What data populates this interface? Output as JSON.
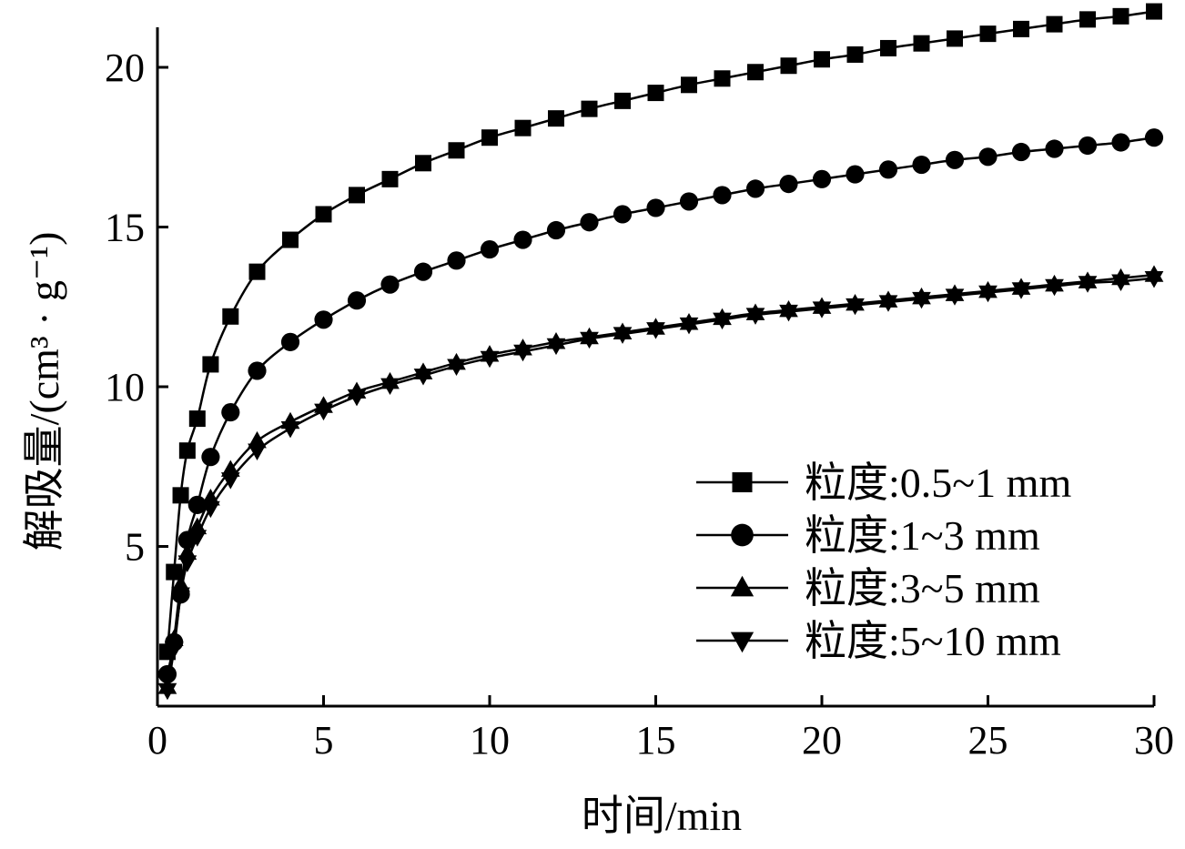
{
  "chart_data": {
    "type": "line",
    "title": "",
    "xlabel": "时间/min",
    "ylabel": "解吸量/(cm³ · g⁻¹)",
    "xlim": [
      0,
      30
    ],
    "ylim": [
      0,
      20
    ],
    "x_ticks": [
      0,
      5,
      10,
      15,
      20,
      25,
      30
    ],
    "y_ticks": [
      5,
      10,
      15,
      20
    ],
    "grid": false,
    "legend_position": "bottom-right",
    "series": [
      {
        "name": "粒度:0.5~1 mm",
        "marker": "square",
        "x": [
          0.3,
          0.5,
          0.7,
          0.9,
          1.2,
          1.6,
          2.2,
          3,
          4,
          5,
          6,
          7,
          8,
          9,
          10,
          11,
          12,
          13,
          14,
          15,
          16,
          17,
          18,
          19,
          20,
          21,
          22,
          23,
          24,
          25,
          26,
          27,
          28,
          29,
          30
        ],
        "y": [
          1.7,
          4.2,
          6.6,
          8.0,
          9.0,
          10.7,
          12.2,
          13.6,
          14.6,
          15.4,
          16.0,
          16.5,
          17.0,
          17.4,
          17.8,
          18.1,
          18.4,
          18.7,
          18.95,
          19.2,
          19.45,
          19.65,
          19.85,
          20.05,
          20.25,
          20.4,
          20.6,
          20.75,
          20.9,
          21.05,
          21.2,
          21.35,
          21.5,
          21.6,
          21.75
        ]
      },
      {
        "name": "粒度:1~3 mm",
        "marker": "circle",
        "x": [
          0.3,
          0.5,
          0.7,
          0.9,
          1.2,
          1.6,
          2.2,
          3,
          4,
          5,
          6,
          7,
          8,
          9,
          10,
          11,
          12,
          13,
          14,
          15,
          16,
          17,
          18,
          19,
          20,
          21,
          22,
          23,
          24,
          25,
          26,
          27,
          28,
          29,
          30
        ],
        "y": [
          1.0,
          2.0,
          3.5,
          5.2,
          6.3,
          7.8,
          9.2,
          10.5,
          11.4,
          12.1,
          12.7,
          13.2,
          13.6,
          13.95,
          14.3,
          14.6,
          14.9,
          15.15,
          15.4,
          15.6,
          15.8,
          16.0,
          16.2,
          16.35,
          16.5,
          16.65,
          16.8,
          16.95,
          17.1,
          17.2,
          17.35,
          17.45,
          17.55,
          17.65,
          17.8
        ]
      },
      {
        "name": "粒度:3~5 mm",
        "marker": "triangle-up",
        "x": [
          0.3,
          0.5,
          0.7,
          0.9,
          1.2,
          1.6,
          2.2,
          3,
          4,
          5,
          6,
          7,
          8,
          9,
          10,
          11,
          12,
          13,
          14,
          15,
          16,
          17,
          18,
          19,
          20,
          21,
          22,
          23,
          24,
          25,
          26,
          27,
          28,
          29,
          30
        ],
        "y": [
          0.6,
          2.1,
          3.8,
          4.8,
          5.6,
          6.5,
          7.4,
          8.3,
          8.9,
          9.4,
          9.85,
          10.15,
          10.45,
          10.75,
          11.0,
          11.2,
          11.4,
          11.55,
          11.7,
          11.85,
          12.0,
          12.15,
          12.3,
          12.4,
          12.5,
          12.6,
          12.7,
          12.8,
          12.9,
          13.0,
          13.1,
          13.2,
          13.3,
          13.4,
          13.5
        ]
      },
      {
        "name": "粒度:5~10 mm",
        "marker": "triangle-down",
        "x": [
          0.3,
          0.5,
          0.7,
          0.9,
          1.2,
          1.6,
          2.2,
          3,
          4,
          5,
          6,
          7,
          8,
          9,
          10,
          11,
          12,
          13,
          14,
          15,
          16,
          17,
          18,
          19,
          20,
          21,
          22,
          23,
          24,
          25,
          26,
          27,
          28,
          29,
          30
        ],
        "y": [
          0.5,
          1.8,
          3.5,
          4.5,
          5.3,
          6.2,
          7.1,
          8.0,
          8.7,
          9.25,
          9.7,
          10.05,
          10.35,
          10.65,
          10.9,
          11.1,
          11.3,
          11.5,
          11.65,
          11.8,
          11.95,
          12.1,
          12.25,
          12.35,
          12.45,
          12.55,
          12.65,
          12.75,
          12.85,
          12.95,
          13.05,
          13.15,
          13.25,
          13.3,
          13.4
        ]
      }
    ]
  }
}
